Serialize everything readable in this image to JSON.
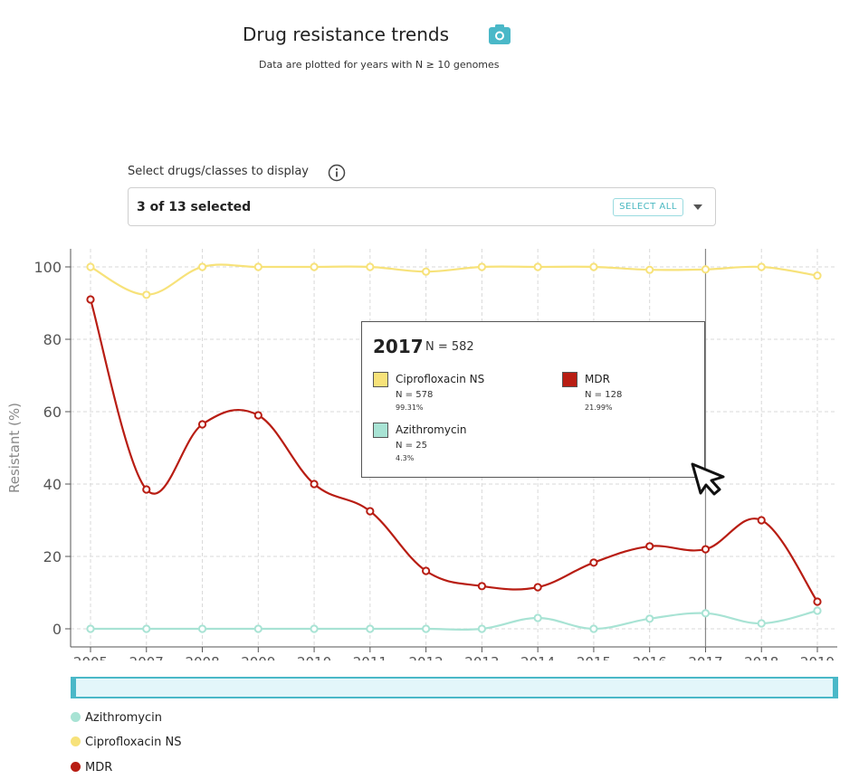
{
  "header": {
    "title": "Drug resistance trends",
    "subtitle": "Data are plotted for years with N ≥ 10 genomes",
    "camera_icon": "camera-icon"
  },
  "selector": {
    "label": "Select drugs/classes to display",
    "value": "3 of 13 selected",
    "select_all": "SELECT ALL",
    "info_icon": "info-icon",
    "caret_icon": "chevron-down-icon"
  },
  "colors": {
    "azithromycin": "#a8e3d4",
    "ciprofloxacin": "#f7e27a",
    "mdr": "#b81d13",
    "accent": "#4ab8c8"
  },
  "chart_data": {
    "type": "line",
    "title": "Drug resistance trends",
    "xlabel": "",
    "ylabel": "Resistant (%)",
    "ylim": [
      -5,
      105
    ],
    "yticks": [
      0,
      20,
      40,
      60,
      80,
      100
    ],
    "grid": true,
    "categories": [
      "2005",
      "2007",
      "2008",
      "2009",
      "2010",
      "2011",
      "2012",
      "2013",
      "2014",
      "2015",
      "2016",
      "2017",
      "2018",
      "2019"
    ],
    "highlight": "2017",
    "series": [
      {
        "key": "ciprofloxacin",
        "name": "Ciprofloxacin NS",
        "color": "#f7e27a",
        "values": [
          100,
          92.3,
          100,
          100,
          100,
          100,
          98.7,
          100,
          100,
          100,
          99.2,
          99.31,
          100,
          97.6
        ]
      },
      {
        "key": "mdr",
        "name": "MDR",
        "color": "#b81d13",
        "values": [
          91,
          38.5,
          56.5,
          59,
          40,
          32.5,
          16,
          11.8,
          11.5,
          18.3,
          22.8,
          21.99,
          30,
          7.5
        ]
      },
      {
        "key": "azithromycin",
        "name": "Azithromycin",
        "color": "#a8e3d4",
        "values": [
          0,
          0,
          0,
          0,
          0,
          0,
          0,
          0,
          3,
          0,
          2.8,
          4.3,
          1.5,
          5
        ]
      }
    ],
    "legend": [
      "Azithromycin",
      "Ciprofloxacin NS",
      "MDR"
    ],
    "legend_position": "bottom-left"
  },
  "tooltip": {
    "year": "2017",
    "total": "N = 582",
    "entries": [
      {
        "name": "Ciprofloxacin NS",
        "count": "N = 578",
        "pct": "99.31%",
        "color": "#f7e27a"
      },
      {
        "name": "MDR",
        "count": "N = 128",
        "pct": "21.99%",
        "color": "#b81d13"
      },
      {
        "name": "Azithromycin",
        "count": "N = 25",
        "pct": "4.3%",
        "color": "#a8e3d4"
      }
    ]
  }
}
